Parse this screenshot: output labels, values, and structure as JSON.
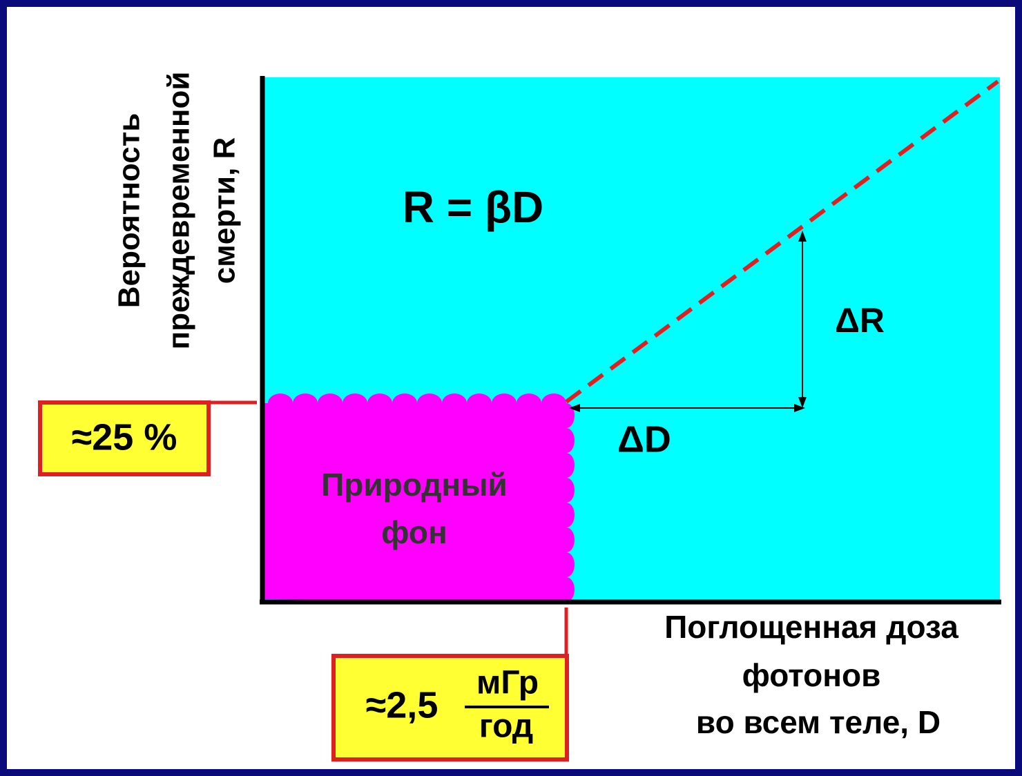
{
  "y_axis_label": [
    "Вероятность",
    "преждевременной",
    "смерти, R"
  ],
  "formula": "R = βD",
  "delta_r": "ΔR",
  "delta_d": "ΔD",
  "region_label": [
    "Природный",
    "фон"
  ],
  "risk_marker": "≈25 %",
  "dose_marker": {
    "value": "≈2,5",
    "numerator": "мГр",
    "denominator": "год"
  },
  "x_axis_label": [
    "Поглощенная доза",
    "фотонов",
    "во всем теле, D"
  ]
}
